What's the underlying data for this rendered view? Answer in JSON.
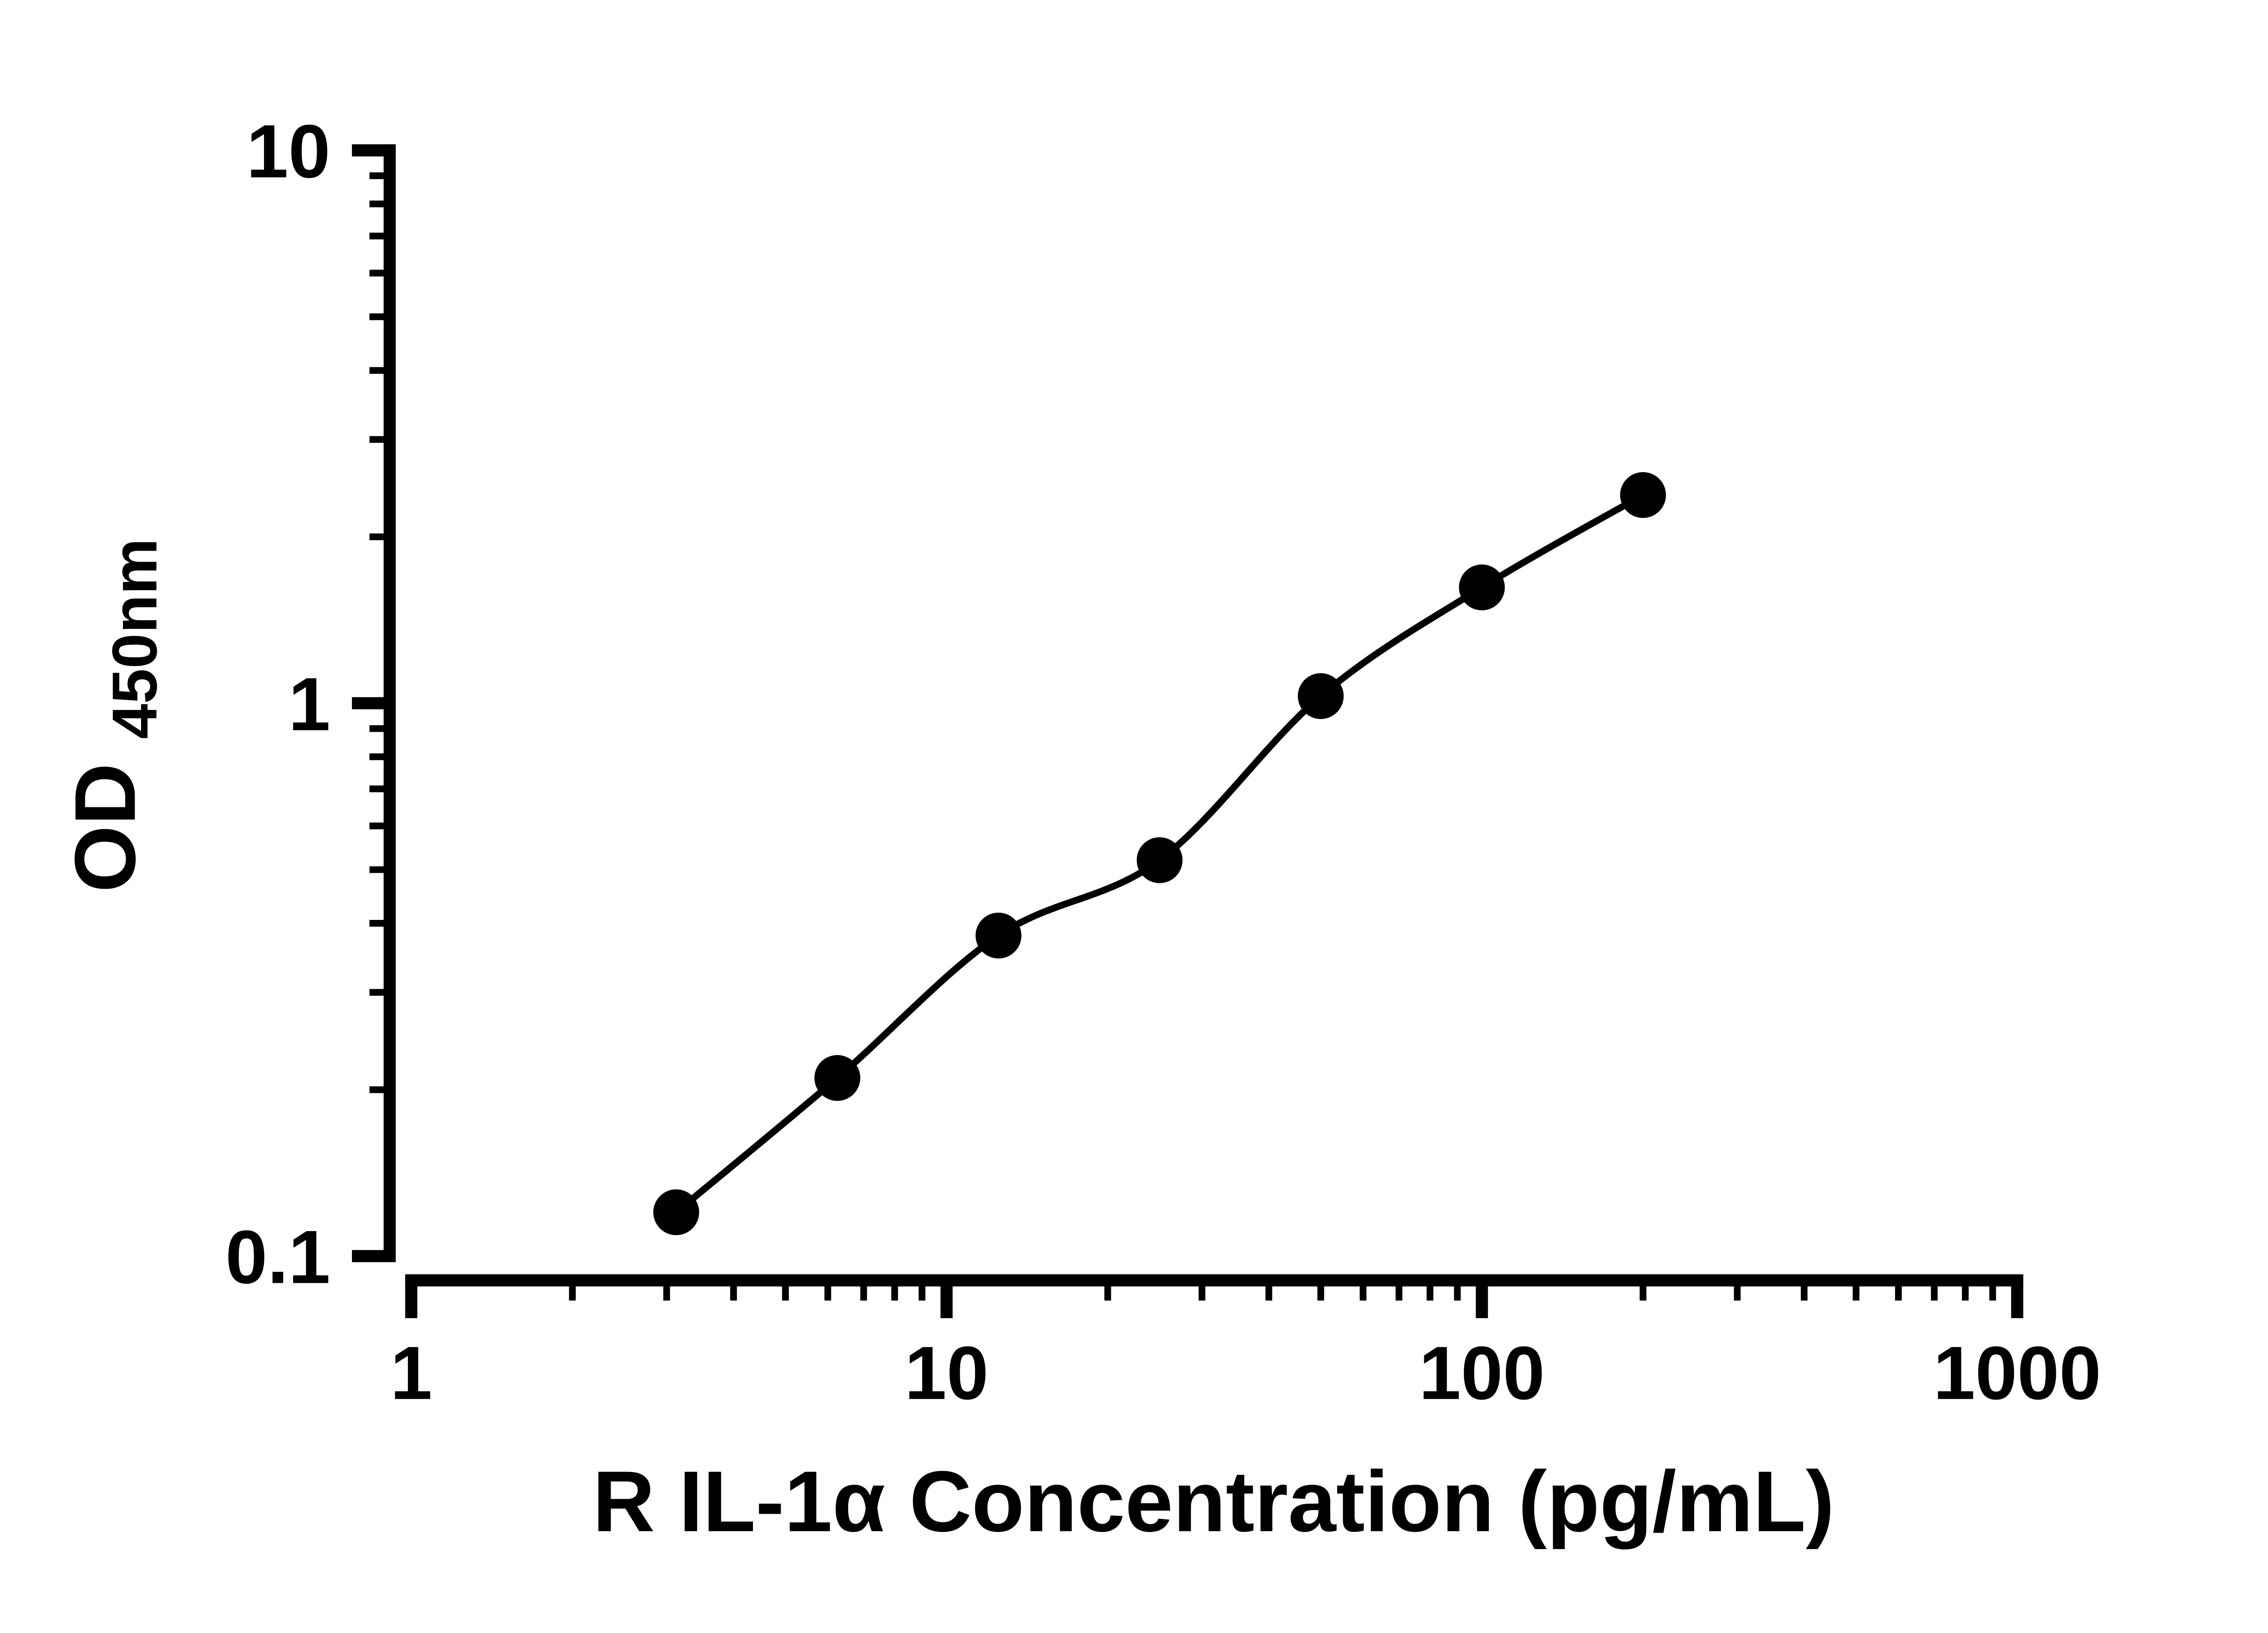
{
  "figure": {
    "background": "#ffffff"
  },
  "chart_data": {
    "type": "scatter",
    "title": "",
    "xlabel": "R IL-1α Concentration (pg/mL)",
    "ylabel_main": "OD",
    "ylabel_sub": "450nm",
    "x_scale": "log",
    "y_scale": "log",
    "xlim": [
      1,
      1000
    ],
    "ylim": [
      0.1,
      10
    ],
    "grid": false,
    "legend": false,
    "axis_color": "#000000",
    "line_color": "#000000",
    "marker_color": "#000000",
    "x_ticks": [
      {
        "value": 1,
        "label": "1"
      },
      {
        "value": 10,
        "label": "10"
      },
      {
        "value": 100,
        "label": "100"
      },
      {
        "value": 1000,
        "label": "1000"
      }
    ],
    "y_ticks": [
      {
        "value": 0.1,
        "label": "0.1"
      },
      {
        "value": 1,
        "label": "1"
      },
      {
        "value": 10,
        "label": "10"
      }
    ],
    "series": [
      {
        "x": [
          3.125,
          6.25,
          12.5,
          25,
          50,
          100,
          200
        ],
        "y": [
          0.12,
          0.21,
          0.38,
          0.52,
          1.03,
          1.62,
          2.38
        ],
        "curve": "smooth-fit-through-points"
      }
    ]
  }
}
